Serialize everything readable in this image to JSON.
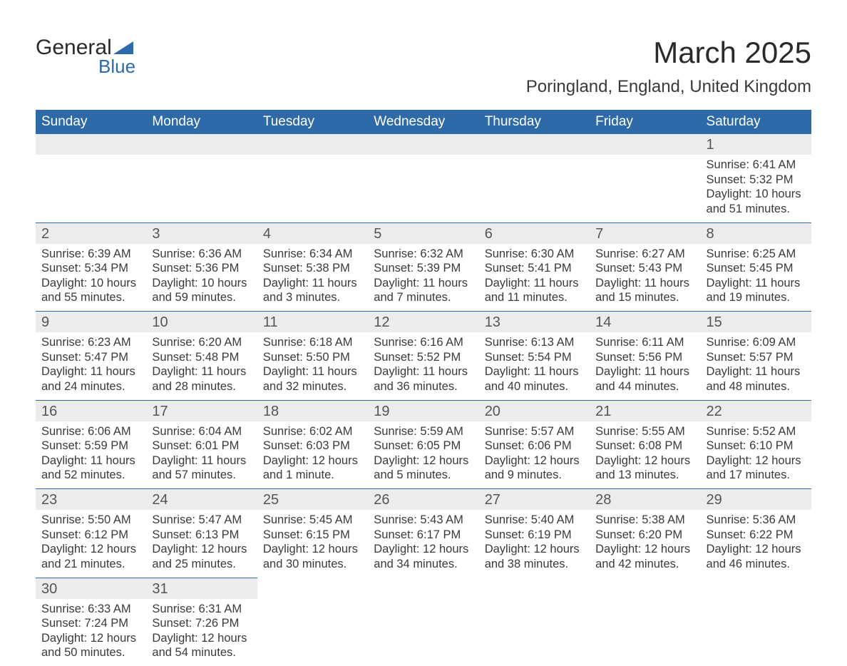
{
  "logo": {
    "text_top": "General",
    "text_bottom": "Blue",
    "tri_color": "#2f6aa8"
  },
  "title": "March 2025",
  "location": "Poringland, England, United Kingdom",
  "colors": {
    "header_bg": "#2f6aa8",
    "header_text": "#ffffff",
    "daynum_bg": "#ececec",
    "row_border": "#2f6aa8",
    "body_text": "#3a3a3a"
  },
  "typography": {
    "title_fontsize_pt": 32,
    "location_fontsize_pt": 18,
    "dayheader_fontsize_pt": 14,
    "daynum_fontsize_pt": 15,
    "cell_fontsize_pt": 12
  },
  "day_headers": [
    "Sunday",
    "Monday",
    "Tuesday",
    "Wednesday",
    "Thursday",
    "Friday",
    "Saturday"
  ],
  "weeks": [
    [
      null,
      null,
      null,
      null,
      null,
      null,
      {
        "n": "1",
        "sunrise": "Sunrise: 6:41 AM",
        "sunset": "Sunset: 5:32 PM",
        "dl1": "Daylight: 10 hours",
        "dl2": "and 51 minutes."
      }
    ],
    [
      {
        "n": "2",
        "sunrise": "Sunrise: 6:39 AM",
        "sunset": "Sunset: 5:34 PM",
        "dl1": "Daylight: 10 hours",
        "dl2": "and 55 minutes."
      },
      {
        "n": "3",
        "sunrise": "Sunrise: 6:36 AM",
        "sunset": "Sunset: 5:36 PM",
        "dl1": "Daylight: 10 hours",
        "dl2": "and 59 minutes."
      },
      {
        "n": "4",
        "sunrise": "Sunrise: 6:34 AM",
        "sunset": "Sunset: 5:38 PM",
        "dl1": "Daylight: 11 hours",
        "dl2": "and 3 minutes."
      },
      {
        "n": "5",
        "sunrise": "Sunrise: 6:32 AM",
        "sunset": "Sunset: 5:39 PM",
        "dl1": "Daylight: 11 hours",
        "dl2": "and 7 minutes."
      },
      {
        "n": "6",
        "sunrise": "Sunrise: 6:30 AM",
        "sunset": "Sunset: 5:41 PM",
        "dl1": "Daylight: 11 hours",
        "dl2": "and 11 minutes."
      },
      {
        "n": "7",
        "sunrise": "Sunrise: 6:27 AM",
        "sunset": "Sunset: 5:43 PM",
        "dl1": "Daylight: 11 hours",
        "dl2": "and 15 minutes."
      },
      {
        "n": "8",
        "sunrise": "Sunrise: 6:25 AM",
        "sunset": "Sunset: 5:45 PM",
        "dl1": "Daylight: 11 hours",
        "dl2": "and 19 minutes."
      }
    ],
    [
      {
        "n": "9",
        "sunrise": "Sunrise: 6:23 AM",
        "sunset": "Sunset: 5:47 PM",
        "dl1": "Daylight: 11 hours",
        "dl2": "and 24 minutes."
      },
      {
        "n": "10",
        "sunrise": "Sunrise: 6:20 AM",
        "sunset": "Sunset: 5:48 PM",
        "dl1": "Daylight: 11 hours",
        "dl2": "and 28 minutes."
      },
      {
        "n": "11",
        "sunrise": "Sunrise: 6:18 AM",
        "sunset": "Sunset: 5:50 PM",
        "dl1": "Daylight: 11 hours",
        "dl2": "and 32 minutes."
      },
      {
        "n": "12",
        "sunrise": "Sunrise: 6:16 AM",
        "sunset": "Sunset: 5:52 PM",
        "dl1": "Daylight: 11 hours",
        "dl2": "and 36 minutes."
      },
      {
        "n": "13",
        "sunrise": "Sunrise: 6:13 AM",
        "sunset": "Sunset: 5:54 PM",
        "dl1": "Daylight: 11 hours",
        "dl2": "and 40 minutes."
      },
      {
        "n": "14",
        "sunrise": "Sunrise: 6:11 AM",
        "sunset": "Sunset: 5:56 PM",
        "dl1": "Daylight: 11 hours",
        "dl2": "and 44 minutes."
      },
      {
        "n": "15",
        "sunrise": "Sunrise: 6:09 AM",
        "sunset": "Sunset: 5:57 PM",
        "dl1": "Daylight: 11 hours",
        "dl2": "and 48 minutes."
      }
    ],
    [
      {
        "n": "16",
        "sunrise": "Sunrise: 6:06 AM",
        "sunset": "Sunset: 5:59 PM",
        "dl1": "Daylight: 11 hours",
        "dl2": "and 52 minutes."
      },
      {
        "n": "17",
        "sunrise": "Sunrise: 6:04 AM",
        "sunset": "Sunset: 6:01 PM",
        "dl1": "Daylight: 11 hours",
        "dl2": "and 57 minutes."
      },
      {
        "n": "18",
        "sunrise": "Sunrise: 6:02 AM",
        "sunset": "Sunset: 6:03 PM",
        "dl1": "Daylight: 12 hours",
        "dl2": "and 1 minute."
      },
      {
        "n": "19",
        "sunrise": "Sunrise: 5:59 AM",
        "sunset": "Sunset: 6:05 PM",
        "dl1": "Daylight: 12 hours",
        "dl2": "and 5 minutes."
      },
      {
        "n": "20",
        "sunrise": "Sunrise: 5:57 AM",
        "sunset": "Sunset: 6:06 PM",
        "dl1": "Daylight: 12 hours",
        "dl2": "and 9 minutes."
      },
      {
        "n": "21",
        "sunrise": "Sunrise: 5:55 AM",
        "sunset": "Sunset: 6:08 PM",
        "dl1": "Daylight: 12 hours",
        "dl2": "and 13 minutes."
      },
      {
        "n": "22",
        "sunrise": "Sunrise: 5:52 AM",
        "sunset": "Sunset: 6:10 PM",
        "dl1": "Daylight: 12 hours",
        "dl2": "and 17 minutes."
      }
    ],
    [
      {
        "n": "23",
        "sunrise": "Sunrise: 5:50 AM",
        "sunset": "Sunset: 6:12 PM",
        "dl1": "Daylight: 12 hours",
        "dl2": "and 21 minutes."
      },
      {
        "n": "24",
        "sunrise": "Sunrise: 5:47 AM",
        "sunset": "Sunset: 6:13 PM",
        "dl1": "Daylight: 12 hours",
        "dl2": "and 25 minutes."
      },
      {
        "n": "25",
        "sunrise": "Sunrise: 5:45 AM",
        "sunset": "Sunset: 6:15 PM",
        "dl1": "Daylight: 12 hours",
        "dl2": "and 30 minutes."
      },
      {
        "n": "26",
        "sunrise": "Sunrise: 5:43 AM",
        "sunset": "Sunset: 6:17 PM",
        "dl1": "Daylight: 12 hours",
        "dl2": "and 34 minutes."
      },
      {
        "n": "27",
        "sunrise": "Sunrise: 5:40 AM",
        "sunset": "Sunset: 6:19 PM",
        "dl1": "Daylight: 12 hours",
        "dl2": "and 38 minutes."
      },
      {
        "n": "28",
        "sunrise": "Sunrise: 5:38 AM",
        "sunset": "Sunset: 6:20 PM",
        "dl1": "Daylight: 12 hours",
        "dl2": "and 42 minutes."
      },
      {
        "n": "29",
        "sunrise": "Sunrise: 5:36 AM",
        "sunset": "Sunset: 6:22 PM",
        "dl1": "Daylight: 12 hours",
        "dl2": "and 46 minutes."
      }
    ],
    [
      {
        "n": "30",
        "sunrise": "Sunrise: 6:33 AM",
        "sunset": "Sunset: 7:24 PM",
        "dl1": "Daylight: 12 hours",
        "dl2": "and 50 minutes."
      },
      {
        "n": "31",
        "sunrise": "Sunrise: 6:31 AM",
        "sunset": "Sunset: 7:26 PM",
        "dl1": "Daylight: 12 hours",
        "dl2": "and 54 minutes."
      },
      null,
      null,
      null,
      null,
      null
    ]
  ]
}
